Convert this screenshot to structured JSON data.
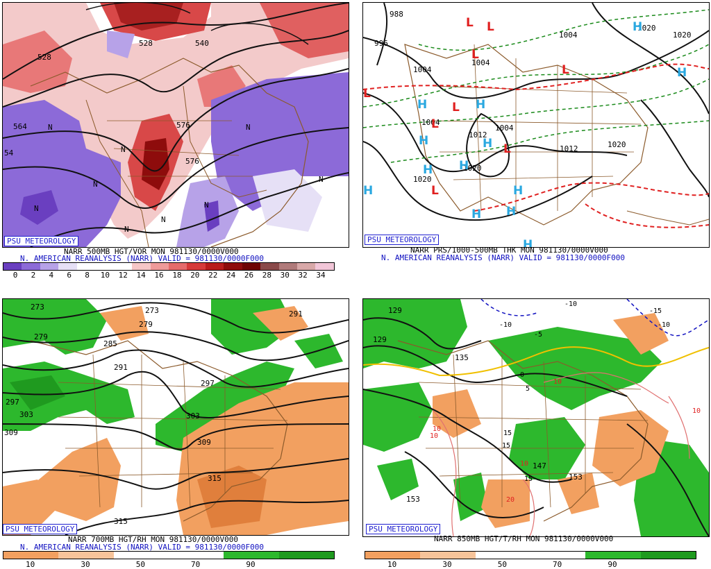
{
  "panels": {
    "vor": {
      "badge": "PSU METEOROLOGY",
      "title": "NARR 500MB HGT/VOR MON 981130/0000V000",
      "subtitle": "N. AMERICAN REANALYSIS (NARR) VALID = 981130/0000F000",
      "colorbar_labels": [
        "0",
        "2",
        "4",
        "6",
        "8",
        "10",
        "12",
        "14",
        "16",
        "18",
        "20",
        "22",
        "24",
        "26",
        "28",
        "30",
        "32",
        "34"
      ],
      "colorbar_colors": [
        "#6a3fc0",
        "#8c6ad8",
        "#b7a2e8",
        "#e6e0f6",
        "#ffffff",
        "#ffffff",
        "#ffffff",
        "#f6c7c7",
        "#ef9a9a",
        "#e56b6b",
        "#d63a3a",
        "#b81c1c",
        "#8e0c0c",
        "#6e0404",
        "#8a4a4a",
        "#b07a7a",
        "#d8a8a8",
        "#f2c6d8"
      ],
      "contour_labels": [
        "528",
        "528",
        "540",
        "564",
        "576",
        "576",
        "54"
      ],
      "marks": [
        "N",
        "N",
        "N",
        "N",
        "N",
        "N",
        "N",
        "N",
        "N"
      ]
    },
    "prs": {
      "badge": "PSU METEOROLOGY",
      "title": "NARR PRS/1000-500MB THK MON 981130/0000V000",
      "subtitle": "N. AMERICAN REANALYSIS (NARR) VALID = 981130/0000F000",
      "isobar_labels": [
        "988",
        "996",
        "1004",
        "1004",
        "1004",
        "1004",
        "1012",
        "1012",
        "1020",
        "1020",
        "1020",
        "1020",
        "1004",
        "1020"
      ],
      "highs": [
        "H",
        "H",
        "H",
        "H",
        "H",
        "H",
        "H",
        "H",
        "H",
        "H",
        "H",
        "H",
        "H"
      ],
      "lows": [
        "L",
        "L",
        "L",
        "L",
        "L",
        "L",
        "L",
        "L",
        "L"
      ]
    },
    "rh700": {
      "badge": "PSU METEOROLOGY",
      "title": "NARR 700MB HGT/RH MON 981130/0000V000",
      "subtitle": "N. AMERICAN REANALYSIS (NARR) VALID = 981130/0000F000",
      "colorbar_labels": [
        "10",
        "30",
        "50",
        "70",
        "90"
      ],
      "height_labels": [
        "273",
        "273",
        "279",
        "279",
        "285",
        "291",
        "291",
        "297",
        "297",
        "303",
        "303",
        "309",
        "309",
        "315",
        "315"
      ]
    },
    "t850": {
      "badge": "PSU METEOROLOGY",
      "title": "NARR 850MB HGT/T/RH MON 981130/0000V000",
      "subtitle": "",
      "colorbar_labels": [
        "10",
        "30",
        "50",
        "70",
        "90"
      ],
      "height_labels": [
        "129",
        "129",
        "135",
        "147",
        "153",
        "153"
      ],
      "temp_labels": [
        "-10",
        "-10",
        "-15",
        "-10",
        "-5",
        "0",
        "5",
        "10",
        "10",
        "10",
        "10",
        "15",
        "15",
        "15",
        "20",
        "10"
      ]
    }
  },
  "colors": {
    "moist": "#2db82d",
    "moist_dark": "#1f9a1f",
    "dry": "#f2a060",
    "dry_dark": "#e07f3c",
    "geo": "#8b5a2b",
    "high": "#2aa8e0",
    "low": "#e02020",
    "thk_green": "#1a8a1a",
    "thk_red": "#e02020"
  }
}
